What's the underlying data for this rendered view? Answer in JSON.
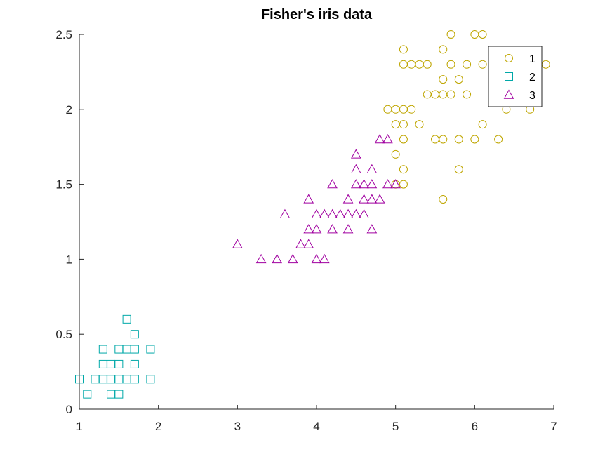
{
  "chart_data": {
    "type": "scatter",
    "title": "Fisher's iris data",
    "xlabel": "",
    "ylabel": "",
    "xlim": [
      1,
      7
    ],
    "ylim": [
      0,
      2.5
    ],
    "xticks": [
      1,
      2,
      3,
      4,
      5,
      6,
      7
    ],
    "yticks": [
      0,
      0.5,
      1,
      1.5,
      2,
      2.5
    ],
    "grid": false,
    "legend_position": "top-right",
    "series": [
      {
        "name": "1",
        "marker": "circle",
        "color": "#BFA600",
        "points": [
          [
            5.7,
            2.5
          ],
          [
            6.0,
            2.5
          ],
          [
            6.1,
            2.5
          ],
          [
            5.1,
            2.4
          ],
          [
            5.6,
            2.4
          ],
          [
            5.1,
            2.3
          ],
          [
            5.2,
            2.3
          ],
          [
            5.3,
            2.3
          ],
          [
            5.4,
            2.3
          ],
          [
            5.7,
            2.3
          ],
          [
            5.9,
            2.3
          ],
          [
            6.1,
            2.3
          ],
          [
            6.9,
            2.3
          ],
          [
            5.6,
            2.2
          ],
          [
            5.8,
            2.2
          ],
          [
            5.4,
            2.1
          ],
          [
            5.5,
            2.1
          ],
          [
            5.6,
            2.1
          ],
          [
            5.7,
            2.1
          ],
          [
            5.9,
            2.1
          ],
          [
            4.9,
            2.0
          ],
          [
            5.0,
            2.0
          ],
          [
            5.1,
            2.0
          ],
          [
            5.2,
            2.0
          ],
          [
            6.4,
            2.0
          ],
          [
            6.7,
            2.0
          ],
          [
            5.0,
            1.9
          ],
          [
            5.1,
            1.9
          ],
          [
            5.3,
            1.9
          ],
          [
            6.1,
            1.9
          ],
          [
            5.1,
            1.8
          ],
          [
            5.5,
            1.8
          ],
          [
            5.6,
            1.8
          ],
          [
            5.8,
            1.8
          ],
          [
            6.0,
            1.8
          ],
          [
            6.3,
            1.8
          ],
          [
            5.0,
            1.7
          ],
          [
            5.1,
            1.6
          ],
          [
            5.8,
            1.6
          ],
          [
            5.0,
            1.5
          ],
          [
            5.1,
            1.5
          ],
          [
            5.6,
            1.4
          ]
        ]
      },
      {
        "name": "2",
        "marker": "square",
        "color": "#00A8A8",
        "points": [
          [
            1.6,
            0.6
          ],
          [
            1.7,
            0.5
          ],
          [
            1.3,
            0.4
          ],
          [
            1.5,
            0.4
          ],
          [
            1.6,
            0.4
          ],
          [
            1.7,
            0.4
          ],
          [
            1.9,
            0.4
          ],
          [
            1.3,
            0.3
          ],
          [
            1.4,
            0.3
          ],
          [
            1.5,
            0.3
          ],
          [
            1.7,
            0.3
          ],
          [
            1.0,
            0.2
          ],
          [
            1.2,
            0.2
          ],
          [
            1.3,
            0.2
          ],
          [
            1.4,
            0.2
          ],
          [
            1.5,
            0.2
          ],
          [
            1.6,
            0.2
          ],
          [
            1.7,
            0.2
          ],
          [
            1.9,
            0.2
          ],
          [
            1.1,
            0.1
          ],
          [
            1.4,
            0.1
          ],
          [
            1.5,
            0.1
          ]
        ]
      },
      {
        "name": "3",
        "marker": "triangle",
        "color": "#A000A0",
        "points": [
          [
            4.8,
            1.8
          ],
          [
            4.9,
            1.8
          ],
          [
            4.5,
            1.7
          ],
          [
            4.5,
            1.6
          ],
          [
            4.7,
            1.6
          ],
          [
            4.2,
            1.5
          ],
          [
            4.5,
            1.5
          ],
          [
            4.6,
            1.5
          ],
          [
            4.7,
            1.5
          ],
          [
            4.9,
            1.5
          ],
          [
            5.0,
            1.5
          ],
          [
            3.9,
            1.4
          ],
          [
            4.4,
            1.4
          ],
          [
            4.6,
            1.4
          ],
          [
            4.7,
            1.4
          ],
          [
            4.8,
            1.4
          ],
          [
            3.6,
            1.3
          ],
          [
            4.0,
            1.3
          ],
          [
            4.1,
            1.3
          ],
          [
            4.2,
            1.3
          ],
          [
            4.3,
            1.3
          ],
          [
            4.4,
            1.3
          ],
          [
            4.5,
            1.3
          ],
          [
            4.6,
            1.3
          ],
          [
            3.9,
            1.2
          ],
          [
            4.0,
            1.2
          ],
          [
            4.2,
            1.2
          ],
          [
            4.4,
            1.2
          ],
          [
            4.7,
            1.2
          ],
          [
            3.0,
            1.1
          ],
          [
            3.8,
            1.1
          ],
          [
            3.9,
            1.1
          ],
          [
            3.3,
            1.0
          ],
          [
            3.5,
            1.0
          ],
          [
            3.7,
            1.0
          ],
          [
            4.0,
            1.0
          ],
          [
            4.1,
            1.0
          ]
        ]
      }
    ]
  }
}
